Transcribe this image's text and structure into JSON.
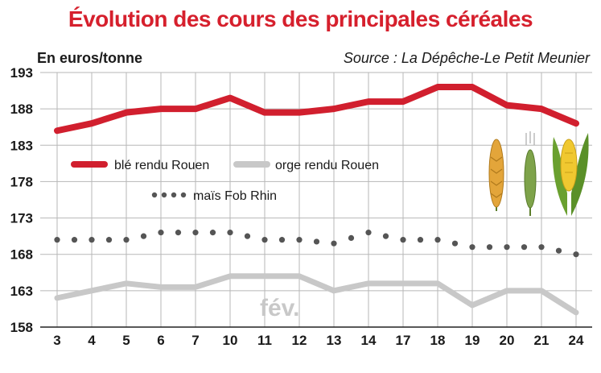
{
  "chart_data": {
    "type": "line",
    "title": "Évolution des cours des principales céréales",
    "ylabel": "En euros/tonne",
    "source": "Source : La Dépêche-Le Petit Meunier",
    "categories": [
      "3",
      "4",
      "5",
      "6",
      "7",
      "10",
      "11",
      "12",
      "13",
      "14",
      "17",
      "18",
      "19",
      "20",
      "21",
      "24"
    ],
    "yticks": [
      193,
      188,
      183,
      178,
      173,
      168,
      163,
      158
    ],
    "ylim": [
      158,
      193
    ],
    "grid": true,
    "annotation": "fév.",
    "series": [
      {
        "name": "blé rendu Rouen",
        "color": "#d11f2e",
        "style": "solid",
        "values": [
          185,
          186,
          187.5,
          188,
          188,
          189.5,
          187.5,
          187.5,
          188,
          189,
          189,
          191,
          191,
          188.5,
          188,
          186
        ]
      },
      {
        "name": "orge rendu Rouen",
        "color": "#c8c8c8",
        "style": "solid",
        "values": [
          162,
          163,
          164,
          163.5,
          163.5,
          165,
          165,
          165,
          163,
          164,
          164,
          164,
          161,
          163,
          163,
          160
        ]
      },
      {
        "name": "maïs Fob Rhin",
        "color": "#555555",
        "style": "dotted",
        "values": [
          170,
          170,
          170,
          171,
          171,
          171,
          170,
          170,
          169.5,
          171,
          170,
          170,
          169,
          169,
          169,
          168
        ]
      }
    ]
  }
}
